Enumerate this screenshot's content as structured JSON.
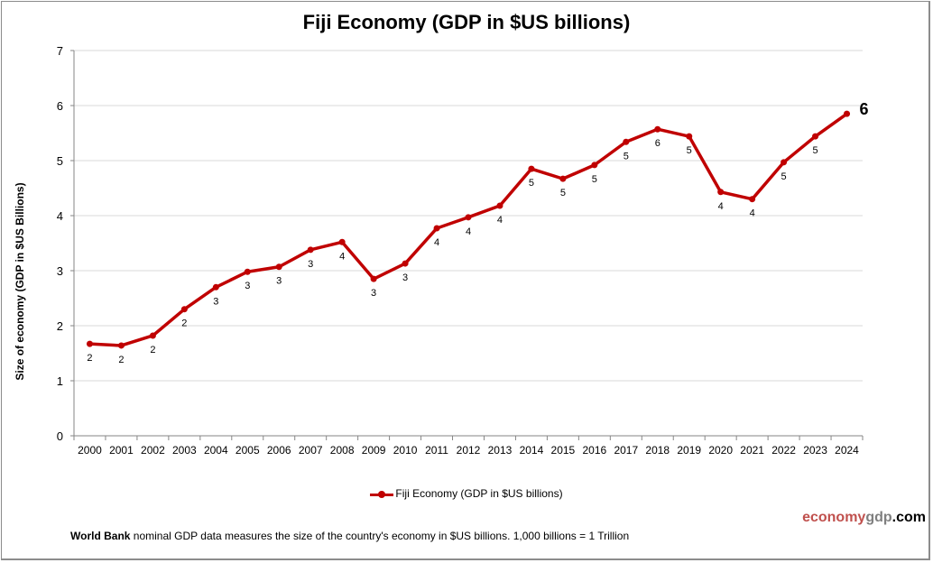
{
  "chart_data": {
    "type": "line",
    "title": "Fiji Economy (GDP in $US billions)",
    "ylabel": "Size of economy (GDP in $US Billions)",
    "xlabel": "",
    "ylim": [
      0,
      7
    ],
    "yticks": [
      "0",
      "1",
      "2",
      "3",
      "4",
      "5",
      "6",
      "7"
    ],
    "grid": true,
    "legend_placement": "bottom",
    "categories": [
      "2000",
      "2001",
      "2002",
      "2003",
      "2004",
      "2005",
      "2006",
      "2007",
      "2008",
      "2009",
      "2010",
      "2011",
      "2012",
      "2013",
      "2014",
      "2015",
      "2016",
      "2017",
      "2018",
      "2019",
      "2020",
      "2021",
      "2022",
      "2023",
      "2024"
    ],
    "series": [
      {
        "name": "Fiji Economy (GDP in $US billions)",
        "color": "#c00000",
        "values": [
          1.67,
          1.64,
          1.82,
          2.3,
          2.7,
          2.98,
          3.07,
          3.38,
          3.52,
          2.85,
          3.13,
          3.77,
          3.97,
          4.18,
          4.85,
          4.67,
          4.92,
          5.34,
          5.57,
          5.44,
          4.43,
          4.3,
          4.97,
          5.44,
          5.85
        ],
        "data_labels": [
          "2",
          "2",
          "2",
          "2",
          "3",
          "3",
          "3",
          "3",
          "4",
          "3",
          "3",
          "4",
          "4",
          "4",
          "5",
          "5",
          "5",
          "5",
          "6",
          "5",
          "4",
          "4",
          "5",
          "5",
          "6"
        ]
      }
    ]
  },
  "footer": {
    "source_bold": "World Bank",
    "source_text": " nominal GDP data  measures the size of the country's economy in $US billions. 1,000 billions = 1 Trillion",
    "brand_part1": "economy",
    "brand_part2": "gdp",
    "brand_part3": ".com",
    "brand_colors": [
      "#c0504d",
      "#7f7f7f",
      "#000000"
    ]
  }
}
